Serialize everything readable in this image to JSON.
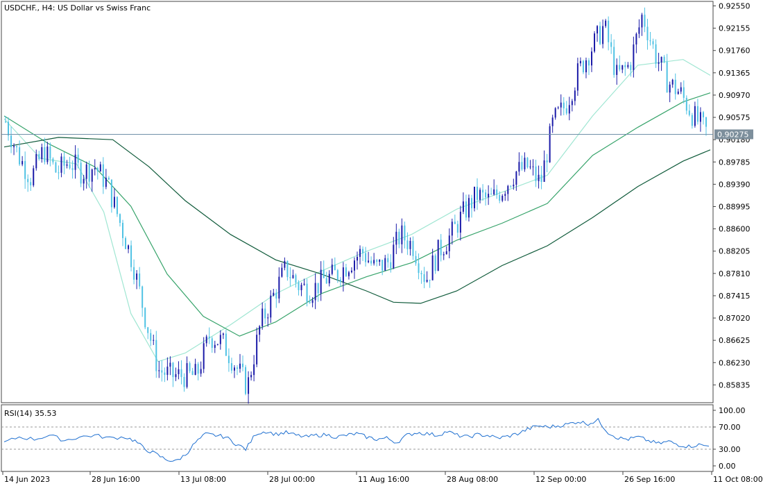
{
  "header": {
    "title": "USDCHF., H4:  US Dollar vs Swiss Franc"
  },
  "chart_data": [
    {
      "type": "candlestick",
      "symbol": "USDCHF.",
      "timeframe": "H4",
      "description": "US Dollar vs Swiss Franc",
      "ylim": [
        0.8552,
        0.9263
      ],
      "y_ticks": [
        "0.92550",
        "0.92155",
        "0.91760",
        "0.91365",
        "0.90970",
        "0.90575",
        "0.90180",
        "0.89785",
        "0.89390",
        "0.88995",
        "0.88600",
        "0.88205",
        "0.87810",
        "0.87415",
        "0.87020",
        "0.86625",
        "0.86230",
        "0.85835"
      ],
      "x_ticks": [
        "14 Jun 2023",
        "28 Jun 16:00",
        "13 Jul 08:00",
        "28 Jul 00:00",
        "11 Aug 16:00",
        "28 Aug 08:00",
        "12 Sep 00:00",
        "26 Sep 16:00",
        "11 Oct 08:00"
      ],
      "current_price": "0.90275",
      "current_price_value": 0.90275,
      "price_path": [
        [
          "14 Jun 2023",
          0.905
        ],
        [
          "19 Jun",
          0.899
        ],
        [
          "21 Jun",
          0.895
        ],
        [
          "23 Jun",
          0.9
        ],
        [
          "26 Jun",
          0.896
        ],
        [
          "28 Jun",
          0.898
        ],
        [
          "30 Jun",
          0.896
        ],
        [
          "3 Jul",
          0.897
        ],
        [
          "4 Jul",
          0.894
        ],
        [
          "6 Jul",
          0.887
        ],
        [
          "7 Jul",
          0.88
        ],
        [
          "10 Jul",
          0.87
        ],
        [
          "11 Jul",
          0.861
        ],
        [
          "12 Jul",
          0.86
        ],
        [
          "14 Jul",
          0.86
        ],
        [
          "17 Jul",
          0.86
        ],
        [
          "19 Jul",
          0.867
        ],
        [
          "21 Jul",
          0.866
        ],
        [
          "24 Jul",
          0.862
        ],
        [
          "25 Jul",
          0.858
        ],
        [
          "26 Jul",
          0.869
        ],
        [
          "28 Jul",
          0.874
        ],
        [
          "31 Jul",
          0.879
        ],
        [
          "2 Aug",
          0.876
        ],
        [
          "4 Aug",
          0.875
        ],
        [
          "8 Aug",
          0.877
        ],
        [
          "10 Aug",
          0.878
        ],
        [
          "14 Aug",
          0.88
        ],
        [
          "16 Aug",
          0.882
        ],
        [
          "18 Aug",
          0.879
        ],
        [
          "21 Aug",
          0.88
        ],
        [
          "23 Aug",
          0.885
        ],
        [
          "25 Aug",
          0.883
        ],
        [
          "28 Aug",
          0.877
        ],
        [
          "30 Aug",
          0.882
        ],
        [
          "1 Sep",
          0.885
        ],
        [
          "4 Sep",
          0.889
        ],
        [
          "6 Sep",
          0.892
        ],
        [
          "8 Sep",
          0.891
        ],
        [
          "11 Sep",
          0.893
        ],
        [
          "13 Sep",
          0.896
        ],
        [
          "15 Sep",
          0.897
        ],
        [
          "18 Sep",
          0.894
        ],
        [
          "20 Sep",
          0.905
        ],
        [
          "22 Sep",
          0.908
        ],
        [
          "25 Sep",
          0.914
        ],
        [
          "27 Sep",
          0.918
        ],
        [
          "28 Sep",
          0.922
        ],
        [
          "29 Sep",
          0.913
        ],
        [
          "2 Oct",
          0.915
        ],
        [
          "4 Oct",
          0.924
        ],
        [
          "5 Oct",
          0.917
        ],
        [
          "6 Oct",
          0.912
        ],
        [
          "9 Oct",
          0.91
        ],
        [
          "10 Oct",
          0.906
        ],
        [
          "11 Oct 08:00",
          0.9033
        ]
      ],
      "moving_averages": [
        {
          "color": "#9fe6d2",
          "path": [
            [
              0,
              0.9055
            ],
            [
              4,
              0.8985
            ],
            [
              8,
              0.8975
            ],
            [
              11,
              0.889
            ],
            [
              14,
              0.871
            ],
            [
              17,
              0.8625
            ],
            [
              20,
              0.864
            ],
            [
              25,
              0.869
            ],
            [
              30,
              0.8745
            ],
            [
              35,
              0.8785
            ],
            [
              40,
              0.882
            ],
            [
              45,
              0.885
            ],
            [
              50,
              0.8895
            ],
            [
              55,
              0.8925
            ],
            [
              60,
              0.8955
            ],
            [
              65,
              0.906
            ],
            [
              70,
              0.915
            ],
            [
              75,
              0.916
            ],
            [
              78,
              0.9132
            ]
          ]
        },
        {
          "color": "#36a36a",
          "path": [
            [
              0,
              0.906
            ],
            [
              5,
              0.901
            ],
            [
              10,
              0.897
            ],
            [
              14,
              0.89
            ],
            [
              18,
              0.878
            ],
            [
              22,
              0.8705
            ],
            [
              26,
              0.867
            ],
            [
              30,
              0.8695
            ],
            [
              35,
              0.8745
            ],
            [
              40,
              0.8775
            ],
            [
              45,
              0.88
            ],
            [
              50,
              0.884
            ],
            [
              55,
              0.887
            ],
            [
              60,
              0.8905
            ],
            [
              65,
              0.899
            ],
            [
              70,
              0.904
            ],
            [
              75,
              0.9085
            ],
            [
              78,
              0.9101
            ]
          ]
        },
        {
          "color": "#0f5a3a",
          "path": [
            [
              0,
              0.9005
            ],
            [
              6,
              0.9022
            ],
            [
              12,
              0.9018
            ],
            [
              16,
              0.897
            ],
            [
              20,
              0.891
            ],
            [
              25,
              0.885
            ],
            [
              30,
              0.8805
            ],
            [
              35,
              0.878
            ],
            [
              40,
              0.875
            ],
            [
              43,
              0.873
            ],
            [
              46,
              0.8728
            ],
            [
              50,
              0.875
            ],
            [
              55,
              0.8795
            ],
            [
              60,
              0.883
            ],
            [
              65,
              0.888
            ],
            [
              70,
              0.8935
            ],
            [
              75,
              0.898
            ],
            [
              78,
              0.9
            ]
          ]
        }
      ]
    },
    {
      "type": "line",
      "indicator": "RSI(14)",
      "label": "RSI(14) 35.53",
      "current_value": 35.53,
      "ylim": [
        0,
        100
      ],
      "y_ticks": [
        "100.00",
        "70.00",
        "30.00",
        "0.00"
      ],
      "levels": [
        70,
        30
      ],
      "path": [
        [
          0,
          42
        ],
        [
          3,
          52
        ],
        [
          6,
          48
        ],
        [
          9,
          55
        ],
        [
          12,
          46
        ],
        [
          15,
          52
        ],
        [
          18,
          55
        ],
        [
          21,
          50
        ],
        [
          24,
          52
        ],
        [
          26,
          45
        ],
        [
          28,
          30
        ],
        [
          30,
          22
        ],
        [
          32,
          12
        ],
        [
          34,
          8
        ],
        [
          36,
          20
        ],
        [
          38,
          42
        ],
        [
          40,
          57
        ],
        [
          42,
          55
        ],
        [
          44,
          52
        ],
        [
          46,
          40
        ],
        [
          48,
          30
        ],
        [
          50,
          58
        ],
        [
          52,
          62
        ],
        [
          54,
          57
        ],
        [
          56,
          60
        ],
        [
          58,
          55
        ],
        [
          60,
          52
        ],
        [
          62,
          55
        ],
        [
          64,
          56
        ],
        [
          66,
          52
        ],
        [
          68,
          55
        ],
        [
          70,
          58
        ],
        [
          72,
          52
        ],
        [
          74,
          48
        ],
        [
          76,
          50
        ],
        [
          78,
          42
        ],
        [
          80,
          55
        ],
        [
          82,
          60
        ],
        [
          84,
          58
        ],
        [
          86,
          55
        ],
        [
          88,
          62
        ],
        [
          90,
          55
        ],
        [
          92,
          52
        ],
        [
          94,
          56
        ],
        [
          96,
          55
        ],
        [
          98,
          50
        ],
        [
          100,
          53
        ],
        [
          102,
          58
        ],
        [
          104,
          66
        ],
        [
          106,
          72
        ],
        [
          108,
          70
        ],
        [
          110,
          72
        ],
        [
          112,
          75
        ],
        [
          114,
          80
        ],
        [
          116,
          76
        ],
        [
          118,
          82
        ],
        [
          120,
          60
        ],
        [
          122,
          50
        ],
        [
          124,
          48
        ],
        [
          126,
          52
        ],
        [
          128,
          45
        ],
        [
          130,
          40
        ],
        [
          132,
          44
        ],
        [
          134,
          38
        ],
        [
          136,
          35
        ],
        [
          138,
          38
        ],
        [
          140,
          35.53
        ]
      ]
    }
  ]
}
